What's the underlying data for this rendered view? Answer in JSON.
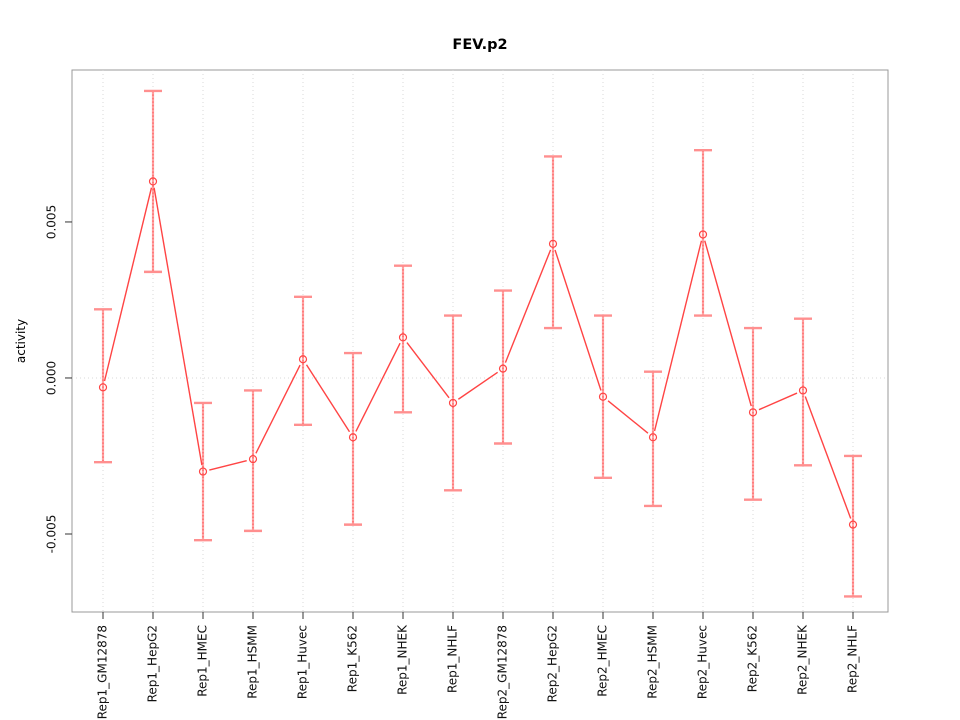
{
  "window": {
    "background": "#ffffff"
  },
  "colors": {
    "series_line": "#ff4444",
    "point_stroke": "#ff4444",
    "errorbar_solid": "#ffa3a3",
    "errorbar_dashed": "#ff5555",
    "errorbar_cap": "#ff8f8f",
    "gridline": "#d9d9d9",
    "plot_border": "#999999",
    "tick_mark": "#333333",
    "text": "#111111"
  },
  "chart_data": {
    "type": "line",
    "title": "FEV.p2",
    "xlabel": "",
    "ylabel": "activity",
    "ylim": [
      -0.0075,
      0.00987
    ],
    "yticks": [
      -0.005,
      0,
      0.005
    ],
    "ytick_labels": [
      "-0.005",
      "0.000",
      "0.005"
    ],
    "x_tick_label_rotation_deg": 90,
    "grid": {
      "vertical_at_categories": "dotted",
      "horizontal_at_zero": "dotted",
      "other_horizontal": "off"
    },
    "legend": "none",
    "marker": "open-circle",
    "categories": [
      "Rep1_GM12878",
      "Rep1_HepG2",
      "Rep1_HMEC",
      "Rep1_HSMM",
      "Rep1_Huvec",
      "Rep1_K562",
      "Rep1_NHEK",
      "Rep1_NHLF",
      "Rep2_GM12878",
      "Rep2_HepG2",
      "Rep2_HMEC",
      "Rep2_HSMM",
      "Rep2_Huvec",
      "Rep2_K562",
      "Rep2_NHEK",
      "Rep2_NHLF"
    ],
    "series": [
      {
        "name": "activity",
        "values": [
          -0.0003,
          0.0063,
          -0.003,
          -0.0026,
          0.0006,
          -0.0019,
          0.0013,
          -0.0008,
          0.0003,
          0.0043,
          -0.0006,
          -0.0019,
          0.0046,
          -0.0011,
          -0.0004,
          -0.0047
        ],
        "ci_high": [
          0.0022,
          0.0092,
          -0.0008,
          -0.0004,
          0.0026,
          0.0008,
          0.0036,
          0.002,
          0.0028,
          0.0071,
          0.002,
          0.0002,
          0.0073,
          0.0016,
          0.0019,
          -0.0025
        ],
        "ci_low": [
          -0.0027,
          0.0034,
          -0.0052,
          -0.0049,
          -0.0015,
          -0.0047,
          -0.0011,
          -0.0036,
          -0.0021,
          0.0016,
          -0.0032,
          -0.0041,
          0.002,
          -0.0039,
          -0.0028,
          -0.007
        ]
      }
    ]
  }
}
